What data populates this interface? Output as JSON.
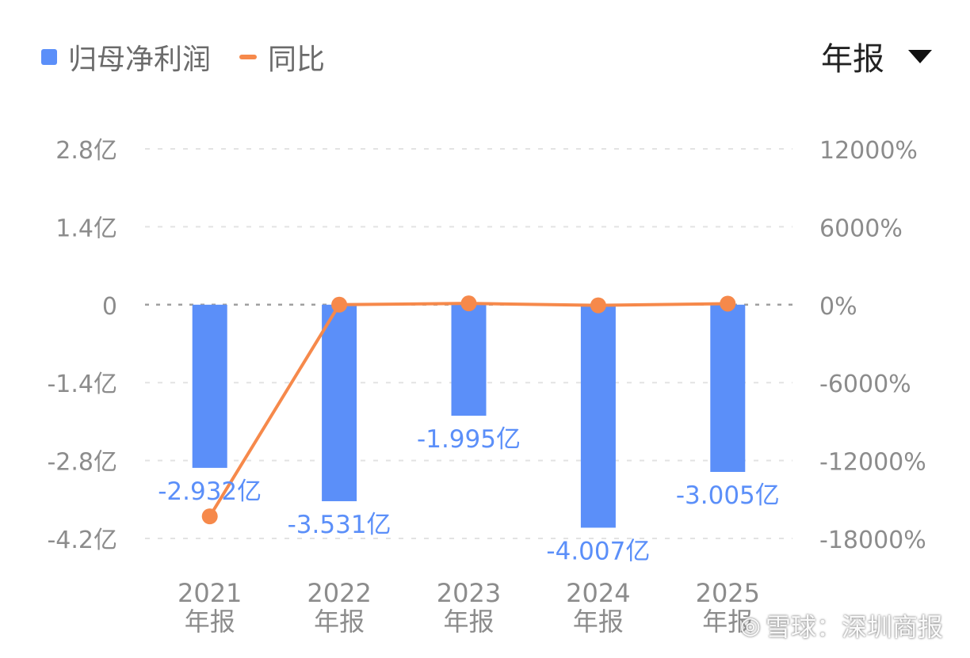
{
  "legend": {
    "bar_label": "归母净利润",
    "line_label": "同比"
  },
  "period_selector": {
    "label": "年报"
  },
  "watermark": {
    "icon": "snowball-logo-icon",
    "text": "雪球：深圳商报"
  },
  "colors": {
    "bar": "#5b8ff9",
    "line": "#f6894b",
    "grid": "#e3e3e3",
    "zero": "#a0a0a0",
    "axis_text": "#8c8c8c",
    "bar_label": "#5b8ff9"
  },
  "chart_data": {
    "type": "bar",
    "categories": [
      "2021\n年报",
      "2022\n年报",
      "2023\n年报",
      "2024\n年报",
      "2025\n年报"
    ],
    "series": [
      {
        "name": "归母净利润",
        "type": "bar",
        "axis": "left",
        "values": [
          -2.932,
          -3.531,
          -1.995,
          -4.007,
          -3.005
        ],
        "value_labels": [
          "-2.932亿",
          "-3.531亿",
          "-1.995亿",
          "-4.007亿",
          "-3.005亿"
        ]
      },
      {
        "name": "同比",
        "type": "line",
        "axis": "right",
        "values": [
          -16300,
          0,
          100,
          -50,
          80
        ]
      }
    ],
    "y_left": {
      "ticks": [
        "2.8亿",
        "1.4亿",
        "0",
        "-1.4亿",
        "-2.8亿",
        "-4.2亿"
      ],
      "tick_values": [
        2.8,
        1.4,
        0,
        -1.4,
        -2.8,
        -4.2
      ],
      "range": [
        -4.2,
        2.8
      ]
    },
    "y_right": {
      "ticks": [
        "12000%",
        "6000%",
        "0%",
        "-6000%",
        "-12000%",
        "-18000%"
      ],
      "tick_values": [
        12000,
        6000,
        0,
        -6000,
        -12000,
        -18000
      ],
      "range": [
        -18000,
        12000
      ]
    },
    "grid": true,
    "legend_position": "top-left"
  }
}
